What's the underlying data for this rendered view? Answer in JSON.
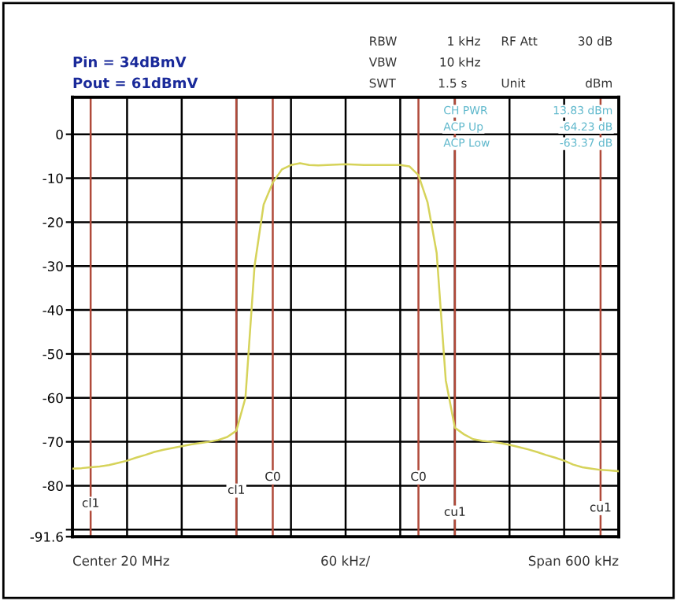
{
  "chart_data": {
    "type": "line",
    "categories": [
      null,
      null,
      null,
      null,
      null,
      null,
      null,
      null,
      null,
      null,
      null,
      null,
      null,
      null,
      null,
      null,
      null,
      null,
      null,
      null,
      null,
      null,
      null,
      null,
      null,
      null,
      null,
      null,
      null,
      null,
      null,
      null,
      null,
      null,
      null,
      null,
      null,
      null,
      null,
      null,
      null,
      null,
      null,
      null,
      null,
      null,
      null,
      null,
      null,
      null,
      null,
      null,
      null,
      null,
      null,
      null,
      null,
      null,
      null,
      null,
      null
    ],
    "series": [
      {
        "color": "#d6d35a",
        "values": [
          -76.1,
          -76.0,
          -75.8,
          -75.6,
          -75.3,
          -74.8,
          -74.3,
          -73.6,
          -73.0,
          -72.3,
          -71.8,
          -71.4,
          -71.0,
          -70.6,
          -70.3,
          -70.0,
          -69.6,
          -68.9,
          -67.5,
          -60,
          -30,
          -16,
          -11,
          -8,
          -7,
          -6.6,
          -7,
          -7.1,
          -7,
          -6.9,
          -6.8,
          -6.9,
          -7,
          -7,
          -7,
          -7,
          -7,
          -7.3,
          -9.3,
          -15.5,
          -27,
          -56,
          -66.8,
          -68.3,
          -69.4,
          -69.8,
          -70,
          -70.3,
          -70.7,
          -71.2,
          -71.7,
          -72.3,
          -73,
          -73.6,
          -74.3,
          -75.2,
          -75.8,
          -76.1,
          -76.4,
          -76.5,
          -76.7
        ]
      }
    ],
    "ylim": [
      -91.6,
      8.4
    ],
    "yticks": [
      {
        "value": -91.6,
        "label": "-91.6"
      },
      {
        "value": -90,
        "label": null
      },
      {
        "value": -80,
        "label": "-80"
      },
      {
        "value": -70,
        "label": "-70"
      },
      {
        "value": -60,
        "label": "-60"
      },
      {
        "value": -50,
        "label": "-50"
      },
      {
        "value": -40,
        "label": "-40"
      },
      {
        "value": -30,
        "label": "-30"
      },
      {
        "value": -20,
        "label": "-20"
      },
      {
        "value": -10,
        "label": "-10"
      },
      {
        "value": 0,
        "label": "0"
      }
    ],
    "grid": true,
    "annotations": [
      "cl1",
      "cl1",
      "C0",
      "C0",
      "cu1",
      "cu1",
      "Pin = 34dBmV",
      "Pout = 61dBmV",
      "RBW",
      "1 kHz",
      "RF Att",
      "30 dB",
      "VBW",
      "10 kHz",
      "SWT",
      "1.5 s",
      "Unit",
      "dBm",
      "CH PWR",
      "13.83 dBm",
      "ACP Up",
      "-64.23 dB",
      "ACP Low",
      "-63.37 dB",
      "Center 20 MHz",
      "60 kHz/",
      "Span 600 kHz"
    ]
  }
}
